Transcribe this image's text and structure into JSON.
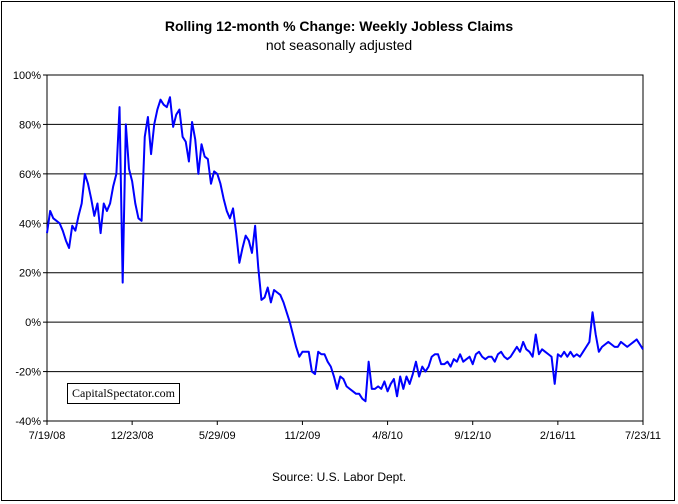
{
  "chart_data": {
    "type": "line",
    "title": "Rolling 12-month %  Change: Weekly Jobless Claims",
    "subtitle": "not seasonally adjusted",
    "source": "Source: U.S. Labor Dept.",
    "watermark": "CapitalSpectator.com",
    "xlabel": "",
    "ylabel": "",
    "ylim": [
      -40,
      100
    ],
    "yticks": [
      -40,
      -20,
      0,
      20,
      40,
      60,
      80,
      100
    ],
    "ytick_labels": [
      "-40%",
      "-20%",
      "0%",
      "20%",
      "40%",
      "60%",
      "80%",
      "100%"
    ],
    "xtick_labels": [
      "7/19/08",
      "12/23/08",
      "5/29/09",
      "11/2/09",
      "4/8/10",
      "9/12/10",
      "2/16/11",
      "7/23/11"
    ],
    "grid": "horizontal",
    "legend": "none",
    "line_color": "#0000ff",
    "series": [
      {
        "values": [
          36,
          45,
          42,
          41,
          40,
          37,
          33,
          30,
          39,
          37,
          43,
          48,
          60,
          56,
          50,
          43,
          48,
          36,
          48,
          45,
          48,
          55,
          60,
          87,
          16,
          80,
          62,
          57,
          48,
          42,
          41,
          75,
          83,
          68,
          80,
          86,
          90,
          88,
          87,
          91,
          79,
          84,
          86,
          75,
          73,
          65,
          81,
          74,
          60,
          72,
          67,
          66,
          56,
          61,
          60,
          56,
          50,
          45,
          42,
          46,
          36,
          24,
          30,
          35,
          33,
          28,
          39,
          22,
          9,
          10,
          14,
          8,
          13,
          12,
          11,
          8,
          4,
          0,
          -5,
          -10,
          -14,
          -12,
          -12,
          -12,
          -20,
          -21,
          -12,
          -13,
          -13,
          -16,
          -18,
          -22,
          -27,
          -22,
          -23,
          -26,
          -27,
          -28,
          -29,
          -29,
          -31,
          -32,
          -16,
          -27,
          -27,
          -26,
          -27,
          -24,
          -28,
          -25,
          -23,
          -30,
          -22,
          -27,
          -22,
          -25,
          -21,
          -16,
          -22,
          -18,
          -20,
          -18,
          -14,
          -13,
          -13,
          -17,
          -17,
          -16,
          -18,
          -15,
          -16,
          -13,
          -16,
          -15,
          -14,
          -17,
          -13,
          -12,
          -14,
          -15,
          -14,
          -14,
          -16,
          -13,
          -12,
          -14,
          -15,
          -14,
          -12,
          -10,
          -12,
          -8,
          -11,
          -12,
          -14,
          -5,
          -13,
          -11,
          -12,
          -13,
          -14,
          -25,
          -13,
          -14,
          -12,
          -14,
          -12,
          -14,
          -13,
          -14,
          -12,
          -10,
          -8,
          4,
          -5,
          -12,
          -10,
          -9,
          -8,
          -9,
          -10,
          -10,
          -8,
          -9,
          -10,
          -9,
          -8,
          -7,
          -9,
          -11
        ]
      }
    ]
  }
}
